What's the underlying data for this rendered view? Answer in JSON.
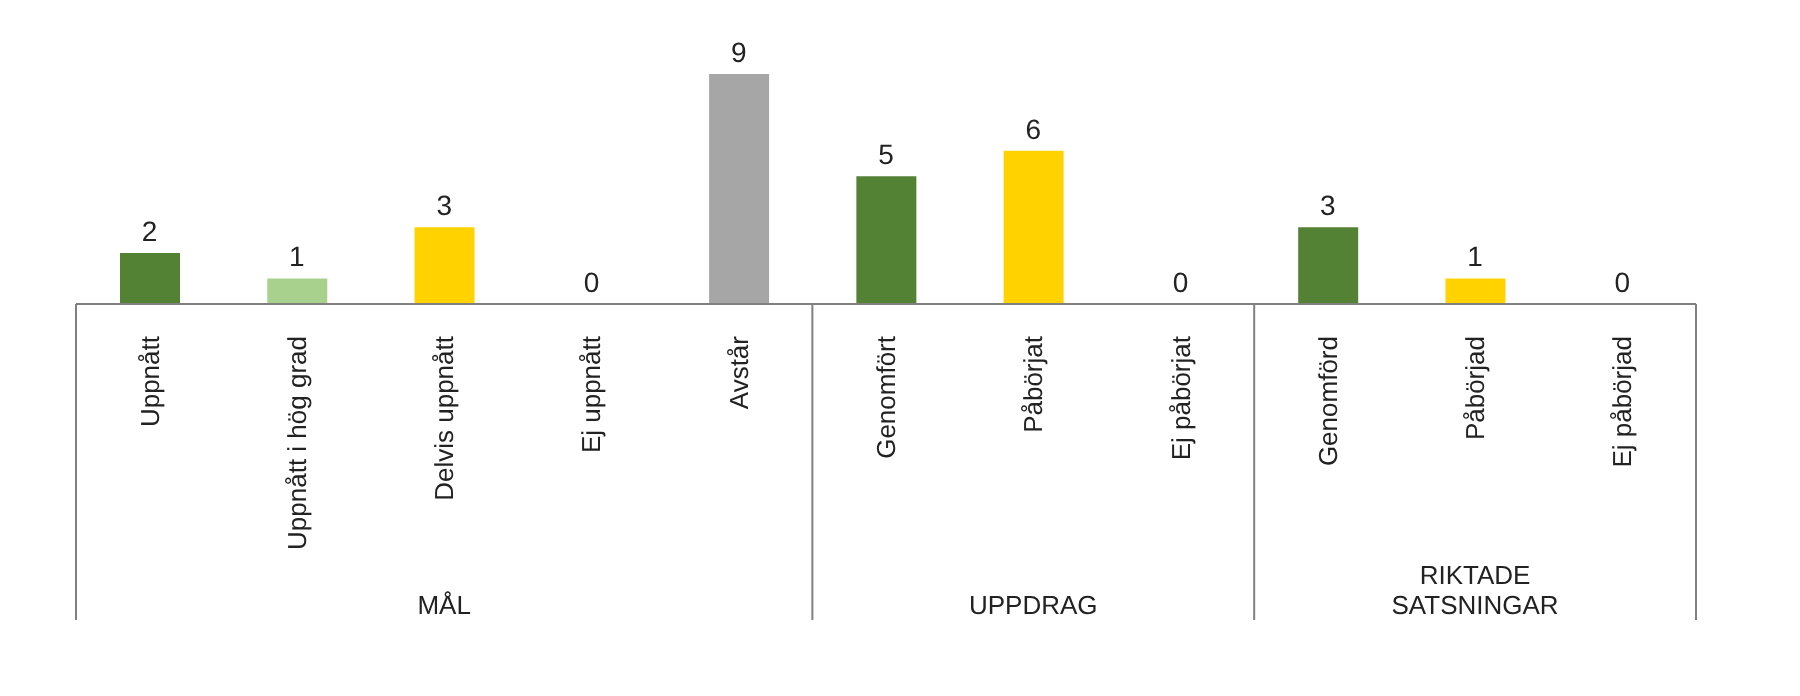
{
  "chart_data": {
    "type": "bar",
    "categories": [
      "Uppnått",
      "Uppnått i hög grad",
      "Delvis uppnått",
      "Ej uppnått",
      "Avstår",
      "Genomfört",
      "Påbörjat",
      "Ej påbörjat",
      "Genomförd",
      "Påbörjad",
      "Ej påbörjad"
    ],
    "values": [
      2,
      1,
      3,
      0,
      9,
      5,
      6,
      0,
      3,
      1,
      0
    ],
    "colors": [
      "#548235",
      "#a9d18e",
      "#ffd200",
      "#ffd200",
      "#a6a6a6",
      "#548235",
      "#ffd200",
      "#ffd200",
      "#548235",
      "#ffd200",
      "#ffd200"
    ],
    "data_labels": true,
    "annotations": [
      "MÅL",
      "UPPDRAG",
      "RIKTADE SATSNINGAR"
    ]
  }
}
